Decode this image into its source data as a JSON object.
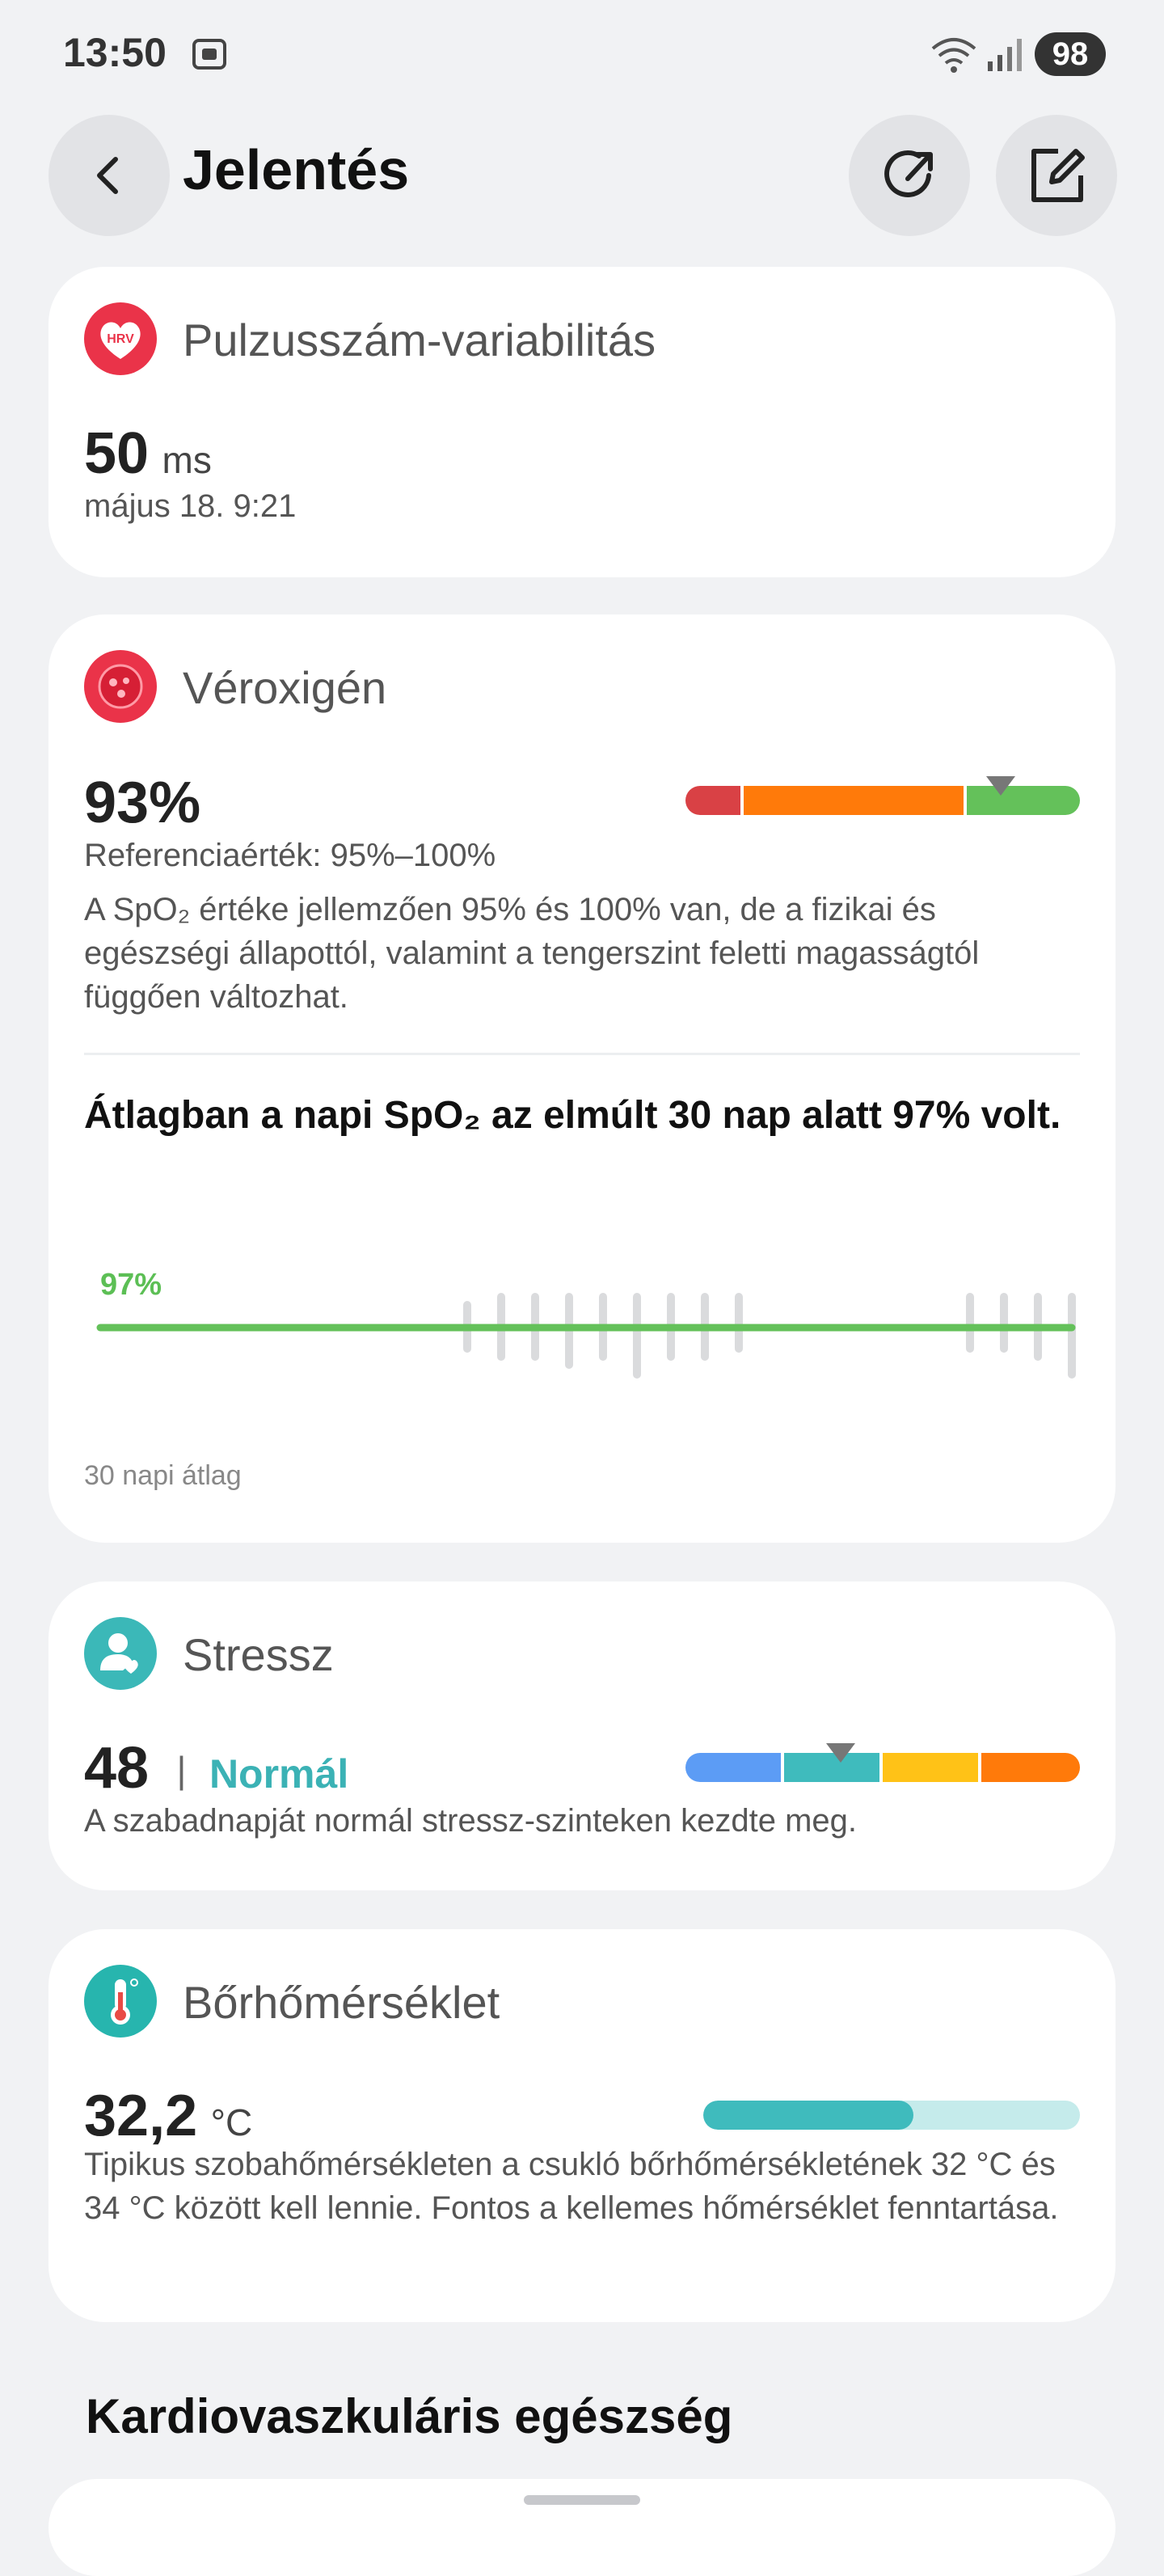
{
  "status_bar": {
    "time": "13:50",
    "battery": "98"
  },
  "header": {
    "title": "Jelentés"
  },
  "hrv": {
    "icon_label": "HRV",
    "title": "Pulzusszám-variabilitás",
    "value": "50",
    "unit": "ms",
    "timestamp": "május 18. 9:21"
  },
  "spo2": {
    "title": "Véroxigén",
    "value": "93%",
    "reference": "Referenciaérték: 95%–100%",
    "description": "A SpO₂ értéke jellemzően 95% és 100% van, de a fizikai és egészségi állapottól, valamint a tengerszint feletti magasságtól függően változhat.",
    "summary": "Átlagban a napi SpO₂ az elmúlt 30 nap alatt 97% volt.",
    "avg_label": "97%",
    "footer": "30 napi átlag",
    "colors": {
      "low": "#d94145",
      "mid": "#ff7a0a",
      "high": "#64c15a"
    }
  },
  "stress": {
    "title": "Stressz",
    "value": "48",
    "separator": "|",
    "level": "Normál",
    "description": "A szabadnapját normál stressz-szinteken kezdte meg.",
    "colors": {
      "relaxed": "#5c9cf5",
      "normal": "#3fbbbd",
      "medium": "#ffc217",
      "high": "#ff7a0a"
    }
  },
  "skin_temp": {
    "title": "Bőrhőmérséklet",
    "value": "32,2",
    "unit": "°C",
    "description": "Tipikus szobahőmérsékleten a csukló bőrhőmérsékletének 32 °C és 34 °C között kell lennie. Fontos a kellemes hőmérséklet fenntartása."
  },
  "cardio": {
    "title": "Kardiovaszkuláris egészség"
  }
}
